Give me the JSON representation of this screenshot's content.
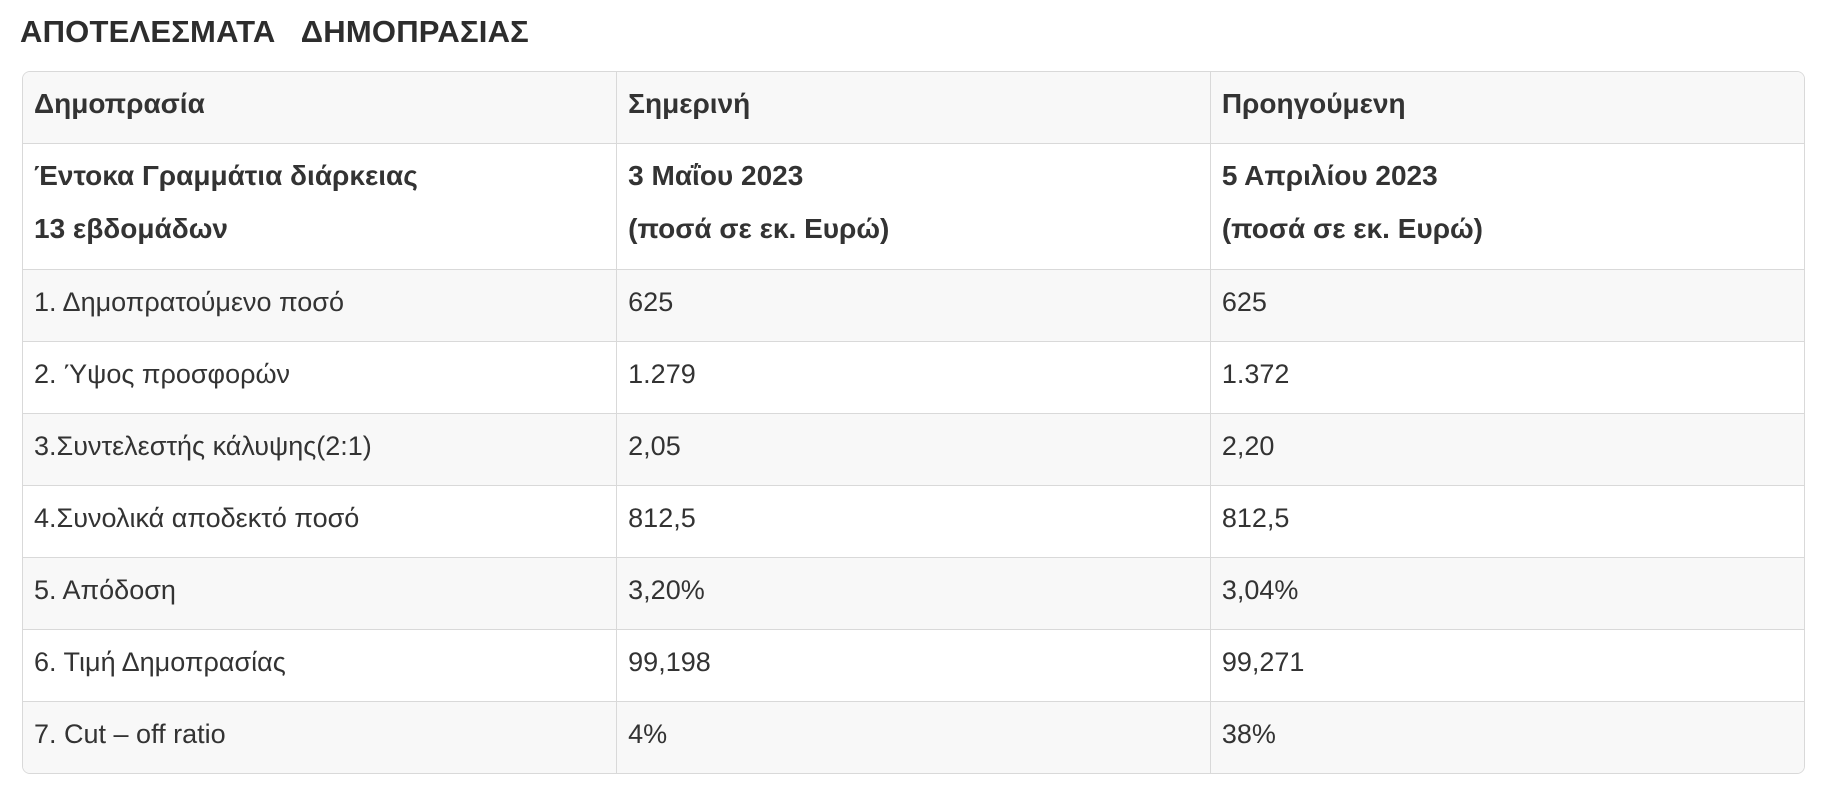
{
  "title": "ΑΠΟΤΕΛΕΣΜΑΤΑ   ΔΗΜΟΠΡΑΣΙΑΣ",
  "table": {
    "header": {
      "auction": "Δημοπρασία",
      "current": "Σημερινή",
      "previous": "Προηγούμενη"
    },
    "subheader": {
      "instrument_line1": "Έντοκα Γραμμάτια διάρκειας",
      "instrument_line2": "13 εβδομάδων",
      "current_date": "3 Μαΐου 2023",
      "current_note": "(ποσά σε εκ. Ευρώ)",
      "previous_date": "5 Απριλίου 2023",
      "previous_note": "(ποσά σε εκ. Ευρώ)"
    },
    "rows": [
      {
        "label": "1. Δημοπρατούμενο ποσό",
        "current": "625",
        "previous": "625"
      },
      {
        "label": "2. Ύψος προσφορών",
        "current": "1.279",
        "previous": "1.372"
      },
      {
        "label": "3.Συντελεστής κάλυψης(2:1)",
        "current": "2,05",
        "previous": "2,20"
      },
      {
        "label": "4.Συνολικά αποδεκτό ποσό",
        "current": "812,5",
        "previous": "812,5"
      },
      {
        "label": "5. Απόδοση",
        "current": "3,20%",
        "previous": "3,04%"
      },
      {
        "label": "6. Τιμή Δημοπρασίας",
        "current": "99,198",
        "previous": "99,271"
      },
      {
        "label": "7. Cut – off ratio",
        "current": "4%",
        "previous": "38%"
      }
    ]
  },
  "colors": {
    "background": "#ffffff",
    "row_stripe": "#f8f8f8",
    "border": "#d9d9d9",
    "text": "#333333",
    "title_color": "#2d2d2d"
  }
}
